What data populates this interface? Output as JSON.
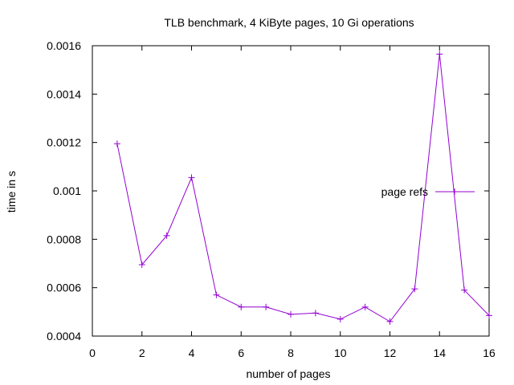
{
  "chart_data": {
    "type": "line",
    "title": "TLB benchmark, 4 KiByte pages, 10 Gi operations",
    "xlabel": "number of pages",
    "ylabel": "time in s",
    "xlim": [
      0,
      16
    ],
    "ylim": [
      0.0004,
      0.0016
    ],
    "xticks": [
      0,
      2,
      4,
      6,
      8,
      10,
      12,
      14,
      16
    ],
    "yticks": [
      0.0004,
      0.0006,
      0.0008,
      0.001,
      0.0012,
      0.0014,
      0.0016
    ],
    "ytick_labels": [
      "0.0004",
      "0.0006",
      "0.0008",
      "0.001",
      "0.0012",
      "0.0014",
      "0.0016"
    ],
    "grid": false,
    "legend_position": "right",
    "series": [
      {
        "name": "page refs",
        "color": "#9400d3",
        "marker": "plus",
        "x": [
          1,
          2,
          3,
          4,
          5,
          6,
          7,
          8,
          9,
          10,
          11,
          12,
          13,
          14,
          15,
          16
        ],
        "y": [
          0.001195,
          0.000695,
          0.000815,
          0.001055,
          0.00057,
          0.00052,
          0.00052,
          0.00049,
          0.000495,
          0.00047,
          0.00052,
          0.00046,
          0.000595,
          0.001565,
          0.00059,
          0.000485
        ]
      }
    ]
  }
}
